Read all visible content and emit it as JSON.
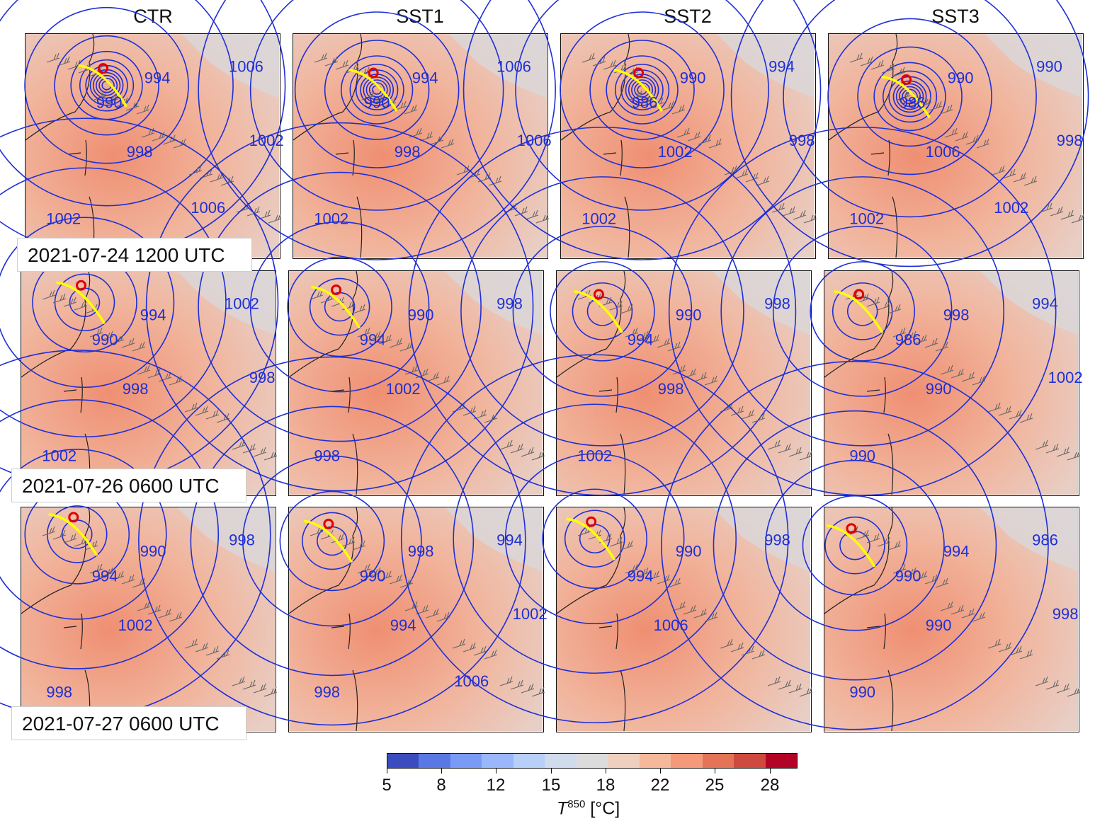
{
  "columns": [
    "CTR",
    "SST1",
    "SST2",
    "SST3"
  ],
  "rows": [
    {
      "time": "2021-07-24 1200 UTC"
    },
    {
      "time": "2021-07-26 0600 UTC"
    },
    {
      "time": "2021-07-27 0600 UTC"
    }
  ],
  "panels": [
    [
      {
        "labels": [
          "994",
          "990",
          "1006",
          "998",
          "1002",
          "1002",
          "1006"
        ]
      },
      {
        "labels": [
          "994",
          "990",
          "1006",
          "998",
          "1002",
          "1006"
        ]
      },
      {
        "labels": [
          "990",
          "986",
          "994",
          "1002",
          "1002",
          "998"
        ]
      },
      {
        "labels": [
          "990",
          "986",
          "990",
          "1006",
          "1002",
          "998",
          "1002"
        ]
      }
    ],
    [
      {
        "labels": [
          "994",
          "990",
          "1002",
          "998",
          "1002",
          "998"
        ]
      },
      {
        "labels": [
          "990",
          "994",
          "998",
          "1002",
          "998"
        ]
      },
      {
        "labels": [
          "990",
          "994",
          "998",
          "998",
          "1002"
        ]
      },
      {
        "labels": [
          "998",
          "986",
          "994",
          "990",
          "990",
          "1002"
        ]
      }
    ],
    [
      {
        "labels": [
          "990",
          "994",
          "998",
          "1002",
          "998"
        ]
      },
      {
        "labels": [
          "998",
          "990",
          "994",
          "994",
          "998",
          "1002",
          "1006"
        ]
      },
      {
        "labels": [
          "990",
          "994",
          "998",
          "1006"
        ]
      },
      {
        "labels": [
          "994",
          "990",
          "986",
          "990",
          "990",
          "998"
        ]
      }
    ]
  ],
  "colorbar": {
    "ticks": [
      "5",
      "8",
      "12",
      "15",
      "18",
      "22",
      "25",
      "28"
    ],
    "label_main": "T",
    "label_sup": "850",
    "label_unit": " [°C]",
    "colors": [
      "#3b4cc0",
      "#5a78e4",
      "#7a9bf5",
      "#9bb7fc",
      "#b8cff8",
      "#d0dbec",
      "#dddcdc",
      "#efcfbd",
      "#f6b89b",
      "#f49a7b",
      "#e57358",
      "#ce4a3e",
      "#b40426"
    ]
  }
}
